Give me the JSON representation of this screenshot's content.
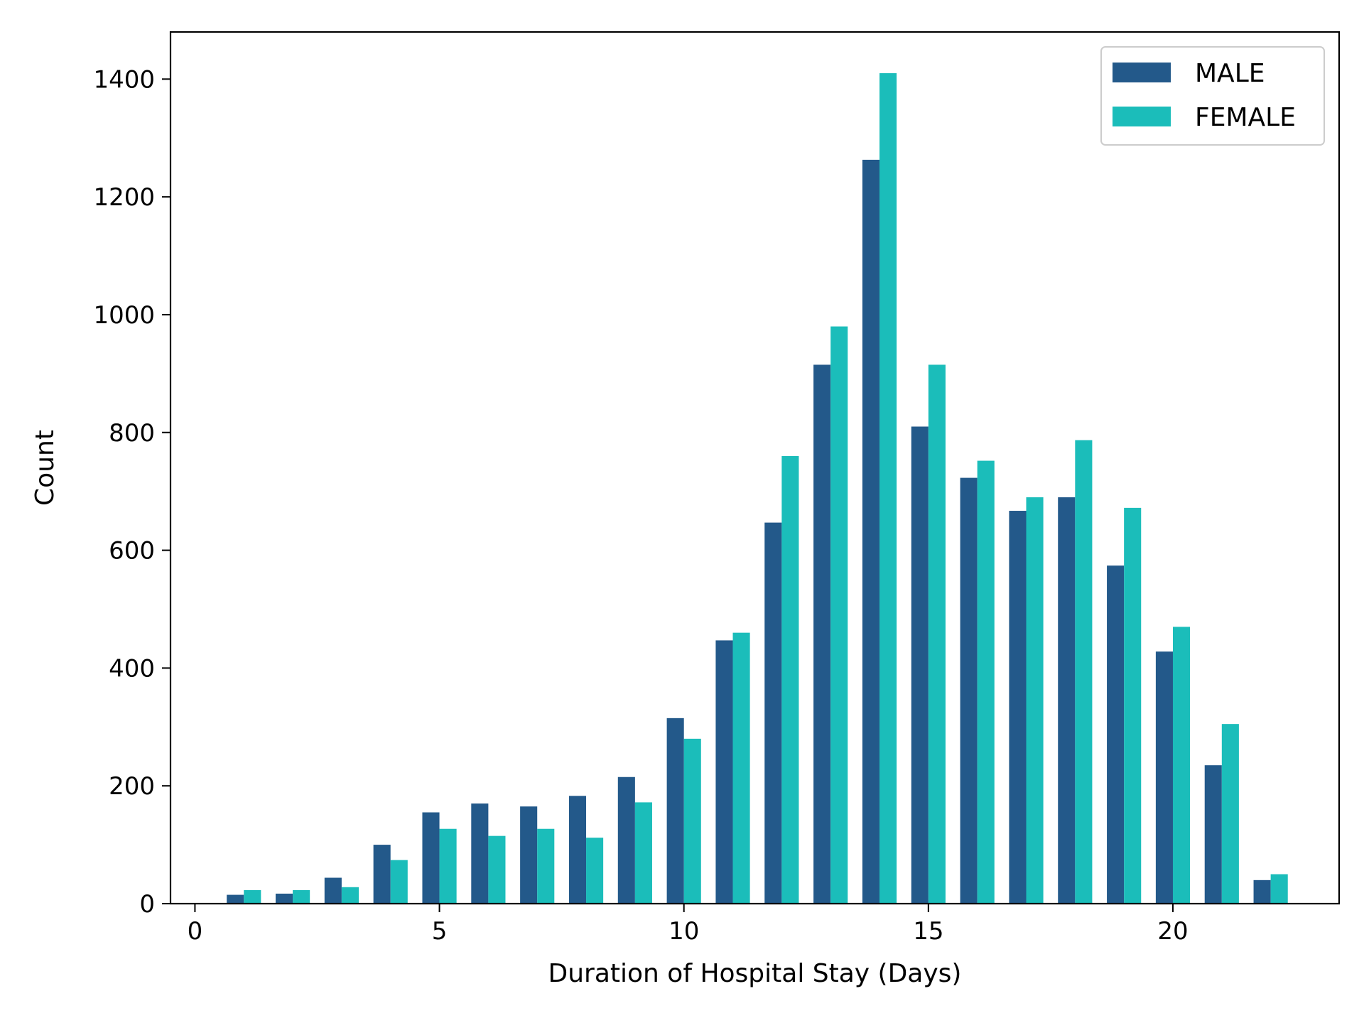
{
  "chart_data": {
    "type": "bar",
    "title": "",
    "xlabel": "Duration of Hospital Stay (Days)",
    "ylabel": "Count",
    "x": [
      1,
      2,
      3,
      4,
      5,
      6,
      7,
      8,
      9,
      10,
      11,
      12,
      13,
      14,
      15,
      16,
      17,
      18,
      19,
      20,
      21,
      22
    ],
    "xlim": [
      -0.5,
      23.4
    ],
    "ylim": [
      0,
      1480
    ],
    "xticks": [
      0,
      5,
      10,
      15,
      20
    ],
    "yticks": [
      0,
      200,
      400,
      600,
      800,
      1000,
      1200,
      1400
    ],
    "xtick_labels": [
      "0",
      "5",
      "10",
      "15",
      "20"
    ],
    "ytick_labels": [
      "0",
      "200",
      "400",
      "600",
      "800",
      "1000",
      "1200",
      "1400"
    ],
    "grid": false,
    "legend_position": "top-right",
    "series": [
      {
        "name": "MALE",
        "color": "#23598a",
        "values": [
          15,
          17,
          44,
          100,
          155,
          170,
          165,
          183,
          215,
          315,
          447,
          647,
          915,
          1263,
          810,
          723,
          667,
          690,
          574,
          428,
          235,
          40
        ]
      },
      {
        "name": "FEMALE",
        "color": "#1bbdba",
        "values": [
          23,
          23,
          28,
          74,
          127,
          115,
          127,
          112,
          172,
          280,
          460,
          760,
          980,
          1410,
          915,
          752,
          690,
          787,
          672,
          470,
          305,
          50
        ]
      }
    ]
  }
}
